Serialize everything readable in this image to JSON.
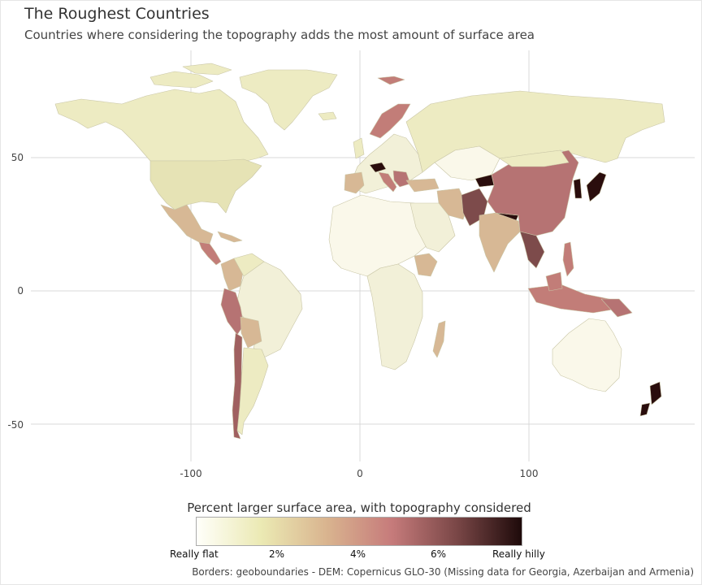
{
  "title": "The Roughest Countries",
  "subtitle": "Countries where considering the topography adds the most amount of surface area",
  "map": {
    "projection": "longitude-latitude",
    "grid": true,
    "x_ticks": [
      "-100",
      "0",
      "100"
    ],
    "y_ticks": [
      "50",
      "0",
      "-50"
    ],
    "missing_data": [
      "Georgia",
      "Azerbaijan",
      "Armenia"
    ]
  },
  "legend": {
    "title": "Percent larger surface area, with topography considered",
    "labels": [
      "Really flat",
      "2%",
      "4%",
      "6%",
      "Really hilly"
    ],
    "colors": [
      "#fffffa",
      "#ebe9b3",
      "#d9b48f",
      "#c67b7b",
      "#7a4747",
      "#1e0a0a"
    ]
  },
  "caption": "Borders: geoboundaries - DEM: Copernicus GLO-30 (Missing data for Georgia, Azerbaijan and Armenia)",
  "colors": {
    "flat": "#faf8ea",
    "light": "#edebc2",
    "mid": "#d7b895",
    "rose": "#c27d78",
    "deep": "#b67373",
    "dark": "#7d4b4b",
    "black": "#2a0d0d",
    "border": "#c9c6a6"
  }
}
